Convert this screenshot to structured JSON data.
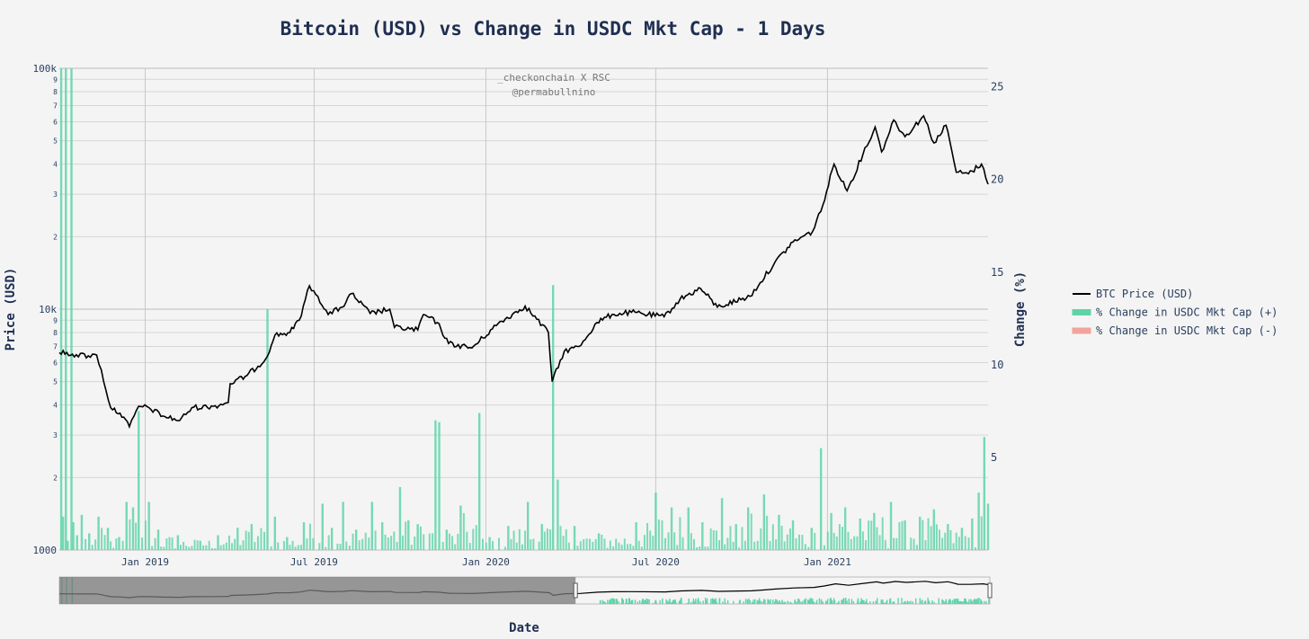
{
  "chart_data": {
    "type": "line",
    "title": "Bitcoin (USD) vs Change in USDC Mkt Cap - 1 Days",
    "xlabel": "Date",
    "ylabel": "Price (USD)",
    "y2label": "Change (%)",
    "annotation": [
      "_checkonchain X RSC",
      "@permabullnino"
    ],
    "yscale": "log",
    "ylim": [
      1000,
      100000
    ],
    "y2lim": [
      0,
      26
    ],
    "xlim": [
      "2018-10-01",
      "2021-06-22"
    ],
    "x_ticks": [
      {
        "date": "2019-01-01",
        "label": "Jan 2019"
      },
      {
        "date": "2019-07-01",
        "label": "Jul 2019"
      },
      {
        "date": "2020-01-01",
        "label": "Jan 2020"
      },
      {
        "date": "2020-07-01",
        "label": "Jul 2020"
      },
      {
        "date": "2021-01-01",
        "label": "Jan 2021"
      }
    ],
    "y_major_ticks": [
      {
        "value": 1000,
        "label": "1000"
      },
      {
        "value": 10000,
        "label": "10k"
      },
      {
        "value": 100000,
        "label": "100k"
      }
    ],
    "y_minor_labels": [
      "2",
      "3",
      "4",
      "5",
      "6",
      "7",
      "8",
      "9"
    ],
    "y2_ticks": [
      {
        "value": 5,
        "label": "5"
      },
      {
        "value": 10,
        "label": "10"
      },
      {
        "value": 15,
        "label": "15"
      },
      {
        "value": 20,
        "label": "20"
      },
      {
        "value": 25,
        "label": "25"
      }
    ],
    "grid": true,
    "legend_position": "right",
    "legend": [
      {
        "name": "BTC Price (USD)",
        "color": "#000000",
        "kind": "line"
      },
      {
        "name": "% Change in USDC Mkt Cap (+)",
        "color": "#5fd3a8",
        "kind": "area"
      },
      {
        "name": "% Change in USDC Mkt Cap (-)",
        "color": "#f2a49c",
        "kind": "area"
      }
    ],
    "series": [
      {
        "name": "BTC Price (USD)",
        "axis": "y",
        "color": "#000000",
        "points": [
          [
            "2018-10-01",
            6600
          ],
          [
            "2018-10-15",
            6500
          ],
          [
            "2018-11-01",
            6400
          ],
          [
            "2018-11-10",
            6450
          ],
          [
            "2018-11-15",
            5600
          ],
          [
            "2018-11-20",
            4600
          ],
          [
            "2018-11-25",
            3900
          ],
          [
            "2018-12-05",
            3700
          ],
          [
            "2018-12-15",
            3250
          ],
          [
            "2018-12-20",
            3600
          ],
          [
            "2018-12-25",
            3950
          ],
          [
            "2019-01-05",
            3900
          ],
          [
            "2019-01-20",
            3600
          ],
          [
            "2019-02-07",
            3450
          ],
          [
            "2019-02-20",
            3900
          ],
          [
            "2019-03-15",
            3950
          ],
          [
            "2019-03-31",
            4100
          ],
          [
            "2019-04-02",
            4900
          ],
          [
            "2019-04-20",
            5300
          ],
          [
            "2019-05-10",
            6200
          ],
          [
            "2019-05-20",
            7800
          ],
          [
            "2019-06-05",
            8000
          ],
          [
            "2019-06-15",
            9000
          ],
          [
            "2019-06-26",
            12500
          ],
          [
            "2019-07-05",
            11300
          ],
          [
            "2019-07-16",
            9500
          ],
          [
            "2019-07-31",
            10200
          ],
          [
            "2019-08-10",
            11600
          ],
          [
            "2019-08-30",
            9600
          ],
          [
            "2019-09-20",
            10000
          ],
          [
            "2019-09-25",
            8400
          ],
          [
            "2019-10-20",
            8200
          ],
          [
            "2019-10-26",
            9500
          ],
          [
            "2019-11-10",
            8800
          ],
          [
            "2019-11-22",
            7200
          ],
          [
            "2019-12-17",
            6900
          ],
          [
            "2020-01-14",
            8700
          ],
          [
            "2020-02-12",
            10300
          ],
          [
            "2020-03-08",
            8000
          ],
          [
            "2020-03-12",
            5000
          ],
          [
            "2020-03-25",
            6700
          ],
          [
            "2020-04-10",
            7000
          ],
          [
            "2020-04-29",
            8800
          ],
          [
            "2020-05-15",
            9500
          ],
          [
            "2020-06-05",
            9700
          ],
          [
            "2020-07-10",
            9300
          ],
          [
            "2020-07-27",
            11000
          ],
          [
            "2020-08-18",
            12200
          ],
          [
            "2020-09-05",
            10200
          ],
          [
            "2020-10-10",
            11300
          ],
          [
            "2020-10-21",
            12900
          ],
          [
            "2020-11-05",
            15500
          ],
          [
            "2020-11-25",
            19000
          ],
          [
            "2020-12-16",
            21000
          ],
          [
            "2020-12-27",
            27000
          ],
          [
            "2021-01-08",
            40000
          ],
          [
            "2021-01-22",
            31000
          ],
          [
            "2021-02-08",
            44000
          ],
          [
            "2021-02-21",
            57000
          ],
          [
            "2021-02-28",
            45000
          ],
          [
            "2021-03-13",
            61000
          ],
          [
            "2021-03-25",
            52000
          ],
          [
            "2021-04-14",
            63500
          ],
          [
            "2021-04-25",
            49000
          ],
          [
            "2021-05-08",
            58000
          ],
          [
            "2021-05-12",
            50000
          ],
          [
            "2021-05-19",
            37000
          ],
          [
            "2021-06-01",
            36500
          ],
          [
            "2021-06-15",
            40000
          ],
          [
            "2021-06-22",
            33000
          ]
        ]
      },
      {
        "name": "% Change in USDC Mkt Cap (+)",
        "axis": "y2",
        "color": "#5fd3a8",
        "points": [
          [
            "2018-10-03",
            26
          ],
          [
            "2018-10-05",
            1.8
          ],
          [
            "2018-10-08",
            26
          ],
          [
            "2018-10-10",
            0.5
          ],
          [
            "2018-10-14",
            26
          ],
          [
            "2018-10-16",
            1.5
          ],
          [
            "2018-10-20",
            0.8
          ],
          [
            "2018-10-25",
            1.9
          ],
          [
            "2018-11-02",
            0.9
          ],
          [
            "2018-11-12",
            1.8
          ],
          [
            "2018-11-22",
            1.2
          ],
          [
            "2018-12-04",
            0.7
          ],
          [
            "2018-12-12",
            2.6
          ],
          [
            "2018-12-19",
            2.3
          ],
          [
            "2018-12-25",
            7.5
          ],
          [
            "2019-01-05",
            2.6
          ],
          [
            "2019-01-15",
            1.1
          ],
          [
            "2019-02-05",
            0.8
          ],
          [
            "2019-03-01",
            0.5
          ],
          [
            "2019-03-20",
            0.8
          ],
          [
            "2019-04-10",
            1.2
          ],
          [
            "2019-04-25",
            1.4
          ],
          [
            "2019-05-12",
            13
          ],
          [
            "2019-05-20",
            1.8
          ],
          [
            "2019-06-02",
            0.7
          ],
          [
            "2019-06-20",
            1.5
          ],
          [
            "2019-07-10",
            2.5
          ],
          [
            "2019-07-20",
            1.2
          ],
          [
            "2019-08-01",
            2.6
          ],
          [
            "2019-08-15",
            1.1
          ],
          [
            "2019-09-01",
            2.6
          ],
          [
            "2019-09-12",
            1.5
          ],
          [
            "2019-10-01",
            3.4
          ],
          [
            "2019-10-10",
            1.6
          ],
          [
            "2019-10-20",
            1.4
          ],
          [
            "2019-11-08",
            7
          ],
          [
            "2019-11-12",
            6.9
          ],
          [
            "2019-11-20",
            1.1
          ],
          [
            "2019-12-05",
            2.4
          ],
          [
            "2019-12-25",
            7.4
          ],
          [
            "2020-01-05",
            0.7
          ],
          [
            "2020-01-25",
            1.3
          ],
          [
            "2020-02-15",
            2.6
          ],
          [
            "2020-03-01",
            1.4
          ],
          [
            "2020-03-13",
            14.3
          ],
          [
            "2020-03-18",
            3.8
          ],
          [
            "2020-04-05",
            1.3
          ],
          [
            "2020-05-01",
            0.9
          ],
          [
            "2020-06-10",
            1.5
          ],
          [
            "2020-07-01",
            3.1
          ],
          [
            "2020-07-18",
            2.3
          ],
          [
            "2020-08-05",
            2.3
          ],
          [
            "2020-08-20",
            1.5
          ],
          [
            "2020-09-10",
            2.8
          ],
          [
            "2020-09-25",
            1.4
          ],
          [
            "2020-10-08",
            2.3
          ],
          [
            "2020-10-25",
            3.0
          ],
          [
            "2020-11-10",
            1.9
          ],
          [
            "2020-11-25",
            1.6
          ],
          [
            "2020-12-15",
            1.2
          ],
          [
            "2020-12-25",
            5.5
          ],
          [
            "2021-01-05",
            2.0
          ],
          [
            "2021-01-20",
            2.3
          ],
          [
            "2021-02-05",
            1.7
          ],
          [
            "2021-02-20",
            2.0
          ],
          [
            "2021-03-10",
            2.6
          ],
          [
            "2021-03-25",
            1.6
          ],
          [
            "2021-04-10",
            1.8
          ],
          [
            "2021-04-25",
            2.2
          ],
          [
            "2021-05-10",
            1.4
          ],
          [
            "2021-05-25",
            1.2
          ],
          [
            "2021-06-05",
            1.7
          ],
          [
            "2021-06-12",
            3.1
          ],
          [
            "2021-06-18",
            6.1
          ],
          [
            "2021-06-22",
            2.5
          ]
        ]
      },
      {
        "name": "% Change in USDC Mkt Cap (-)",
        "axis": "y2",
        "color": "#f2a49c",
        "points": []
      }
    ],
    "range_slider": {
      "selected_from": "2020-04-05",
      "selected_to": "2021-06-22"
    }
  }
}
